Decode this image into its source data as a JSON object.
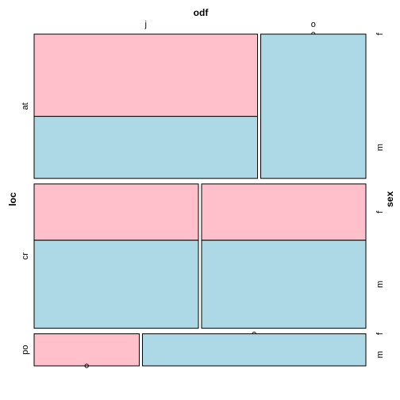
{
  "chart_data": {
    "type": "mosaic",
    "title": "",
    "x_var": "odf",
    "y_var": "loc",
    "z_var": "sex",
    "odf_levels": [
      "j",
      "o"
    ],
    "loc_levels": [
      "at",
      "cr",
      "po"
    ],
    "sex_levels": [
      "f",
      "m"
    ],
    "colors": {
      "f": "#ffc0cb",
      "m": "#add8e6"
    },
    "cells": [
      {
        "loc": "at",
        "odf": "j",
        "width": 0.68,
        "f": 0.57,
        "m": 0.43
      },
      {
        "loc": "at",
        "odf": "o",
        "width": 0.32,
        "f": 0.0,
        "m": 1.0
      },
      {
        "loc": "cr",
        "odf": "j",
        "width": 0.5,
        "f": 0.39,
        "m": 0.61
      },
      {
        "loc": "cr",
        "odf": "o",
        "width": 0.5,
        "f": 0.39,
        "m": 0.61
      },
      {
        "loc": "po",
        "odf": "j",
        "width": 0.32,
        "f": 1.0,
        "m": 0.0
      },
      {
        "loc": "po",
        "odf": "o",
        "width": 0.68,
        "f": 0.0,
        "m": 1.0
      }
    ],
    "row_fractions": {
      "at": 0.45,
      "cr": 0.45,
      "po": 0.1
    }
  }
}
